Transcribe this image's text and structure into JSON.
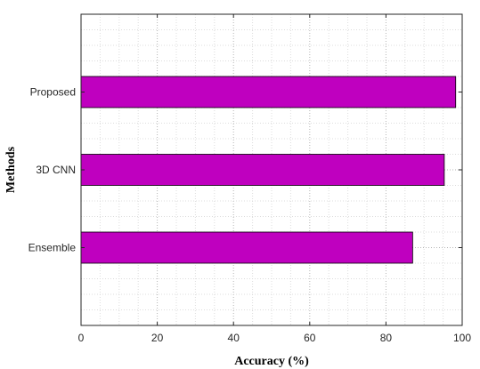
{
  "chart_data": {
    "type": "bar",
    "orientation": "horizontal",
    "categories": [
      "Ensemble",
      "3D CNN",
      "Proposed"
    ],
    "values": [
      87,
      95.3,
      98.3
    ],
    "xlabel": "Accuracy (%)",
    "ylabel": "Methods",
    "xlim": [
      0,
      100
    ],
    "xticks": [
      "0",
      "20",
      "40",
      "60",
      "80",
      "100"
    ],
    "grid": "dotted major and minor",
    "bar_color": "#BF00BF",
    "bar_edge_color": "#000000"
  }
}
